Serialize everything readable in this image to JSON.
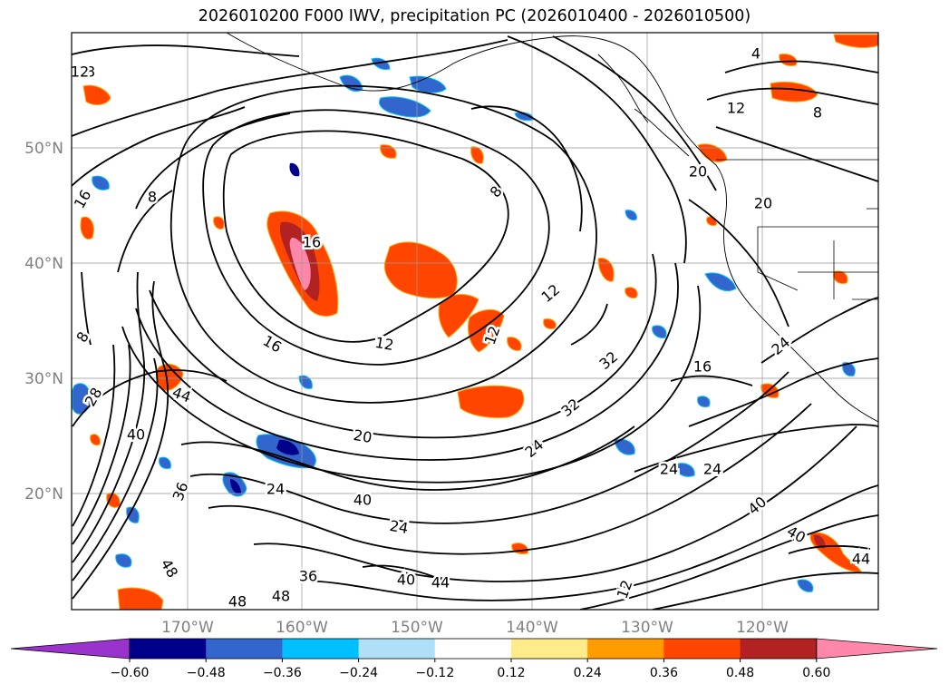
{
  "title": "2026010200 F000 IWV, precipitation PC (2026010400 - 2026010500)",
  "map": {
    "lat_labels": [
      "50°N",
      "40°N",
      "30°N",
      "20°N"
    ],
    "lon_labels": [
      "170°W",
      "160°W",
      "150°W",
      "140°W",
      "130°W",
      "120°W"
    ],
    "iwv_contour_labels": [
      {
        "text": "4"
      },
      {
        "text": "8"
      },
      {
        "text": "8"
      },
      {
        "text": "8"
      },
      {
        "text": "8"
      },
      {
        "text": "12"
      },
      {
        "text": "12"
      },
      {
        "text": "12"
      },
      {
        "text": "12"
      },
      {
        "text": "12"
      },
      {
        "text": "16"
      },
      {
        "text": "16"
      },
      {
        "text": "16"
      },
      {
        "text": "20"
      },
      {
        "text": "20"
      },
      {
        "text": "20"
      },
      {
        "text": "24"
      },
      {
        "text": "24"
      },
      {
        "text": "24"
      },
      {
        "text": "24"
      },
      {
        "text": "28"
      },
      {
        "text": "32"
      },
      {
        "text": "32"
      },
      {
        "text": "36"
      },
      {
        "text": "36"
      },
      {
        "text": "40"
      },
      {
        "text": "40"
      },
      {
        "text": "40"
      },
      {
        "text": "40"
      },
      {
        "text": "44"
      },
      {
        "text": "44"
      },
      {
        "text": "44"
      },
      {
        "text": "48"
      },
      {
        "text": "48"
      },
      {
        "text": "48"
      },
      {
        "text": "12"
      },
      {
        "text": "8"
      },
      {
        "text": "16"
      },
      {
        "text": "24"
      },
      {
        "text": "40"
      },
      {
        "text": "24"
      }
    ]
  },
  "colorbar": {
    "tick_labels": [
      "−0.60",
      "−0.48",
      "−0.36",
      "−0.24",
      "−0.12",
      "0.12",
      "0.24",
      "0.36",
      "0.48",
      "0.60"
    ],
    "colors": [
      "#9933cc",
      "#00008b",
      "#3366cc",
      "#00bfff",
      "#b0e0f8",
      "#ffffff",
      "#ffeb8a",
      "#ff9c00",
      "#ff4500",
      "#b22222",
      "#ff88aa"
    ]
  }
}
